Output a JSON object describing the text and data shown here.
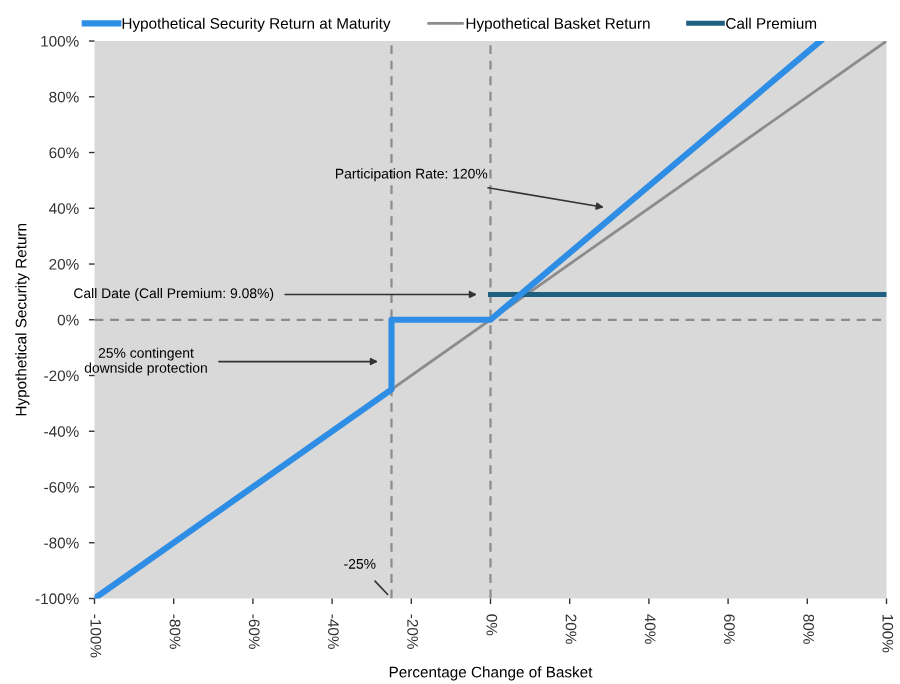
{
  "chart_data": {
    "type": "line",
    "xlabel": "Percentage Change of Basket",
    "ylabel": "Hypothetical Security Return",
    "series": [
      {
        "name": "Hypothetical Security Return at Maturity",
        "color": "#2e8de4",
        "x": [
          -100,
          -25,
          -25,
          0,
          83.3
        ],
        "values": [
          -100,
          -25,
          0,
          0,
          100
        ]
      },
      {
        "name": "Hypothetical Basket Return",
        "color": "#8c8c8c",
        "x": [
          -100,
          100
        ],
        "values": [
          -100,
          100
        ]
      },
      {
        "name": "Call Premium",
        "color": "#1f5f7f",
        "x": [
          0,
          100
        ],
        "values": [
          9.08,
          9.08
        ]
      }
    ],
    "ref_lines": [
      {
        "axis": "y",
        "value": 0,
        "color": "#8c8c8c",
        "line_style": "dashed"
      },
      {
        "axis": "x",
        "value": -25,
        "color": "#8c8c8c",
        "line_style": "dashed"
      },
      {
        "axis": "x",
        "value": 0,
        "color": "#8c8c8c",
        "line_style": "dashed"
      }
    ],
    "annotations": [
      {
        "text": "Participation Rate: 120%",
        "x": 30,
        "y": 40
      },
      {
        "text": "Call Date (Call Premium: 9.08%)",
        "x": -2,
        "y": 9.08
      },
      {
        "text": "25% contingent\ndownside protection",
        "x": -27,
        "y": -15
      },
      {
        "text": "-25%",
        "x": -25,
        "y": -100
      }
    ],
    "xlim": [
      -100,
      100
    ],
    "ylim": [
      -100,
      100
    ],
    "xticks": [
      {
        "value": -100,
        "label": "-100%"
      },
      {
        "value": -80,
        "label": "-80%"
      },
      {
        "value": -60,
        "label": "-60%"
      },
      {
        "value": -40,
        "label": "-40%"
      },
      {
        "value": -20,
        "label": "-20%"
      },
      {
        "value": 0,
        "label": "0%"
      },
      {
        "value": 20,
        "label": "20%"
      },
      {
        "value": 40,
        "label": "40%"
      },
      {
        "value": 60,
        "label": "60%"
      },
      {
        "value": 80,
        "label": "80%"
      },
      {
        "value": 100,
        "label": "100%"
      }
    ],
    "yticks": [
      {
        "value": -100,
        "label": "-100%"
      },
      {
        "value": -80,
        "label": "-80%"
      },
      {
        "value": -60,
        "label": "-60%"
      },
      {
        "value": -40,
        "label": "-40%"
      },
      {
        "value": -20,
        "label": "-20%"
      },
      {
        "value": 0,
        "label": "0%"
      },
      {
        "value": 20,
        "label": "20%"
      },
      {
        "value": 40,
        "label": "40%"
      },
      {
        "value": 60,
        "label": "60%"
      },
      {
        "value": 80,
        "label": "80%"
      },
      {
        "value": 100,
        "label": "100%"
      }
    ],
    "grid": false,
    "legend": "top"
  }
}
